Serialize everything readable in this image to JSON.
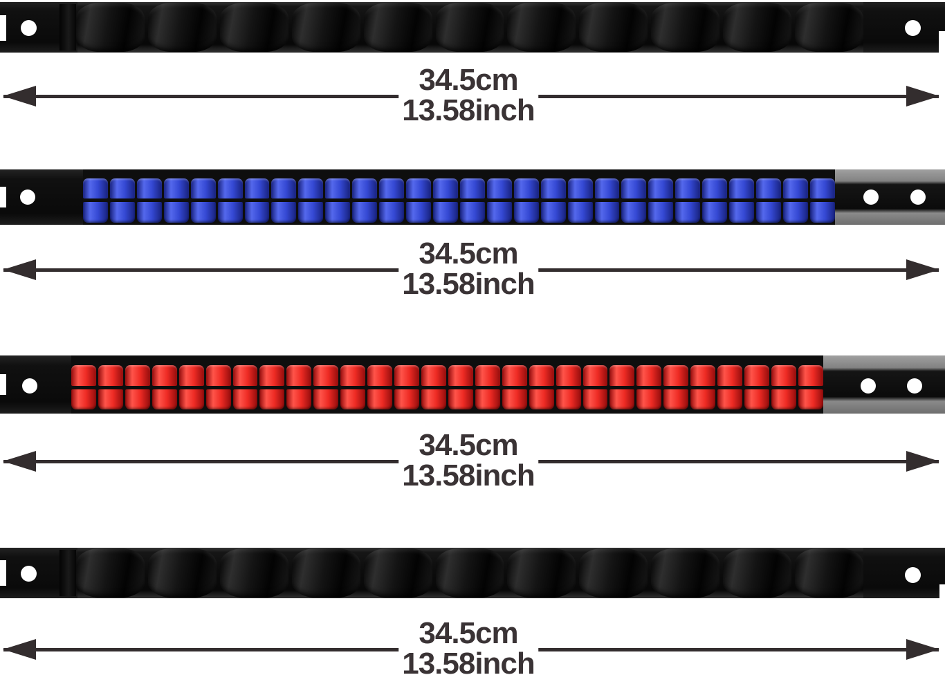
{
  "page": {
    "background": "#ffffff"
  },
  "dimensions": {
    "text_color": "#3a3335",
    "arrow_color": "#332d2e",
    "items": [
      {
        "cm": "34.5cm",
        "inch": "13.58inch"
      },
      {
        "cm": "34.5cm",
        "inch": "13.58inch"
      },
      {
        "cm": "34.5cm",
        "inch": "13.58inch"
      },
      {
        "cm": "34.5cm",
        "inch": "13.58inch"
      }
    ]
  },
  "rails": [
    {
      "id": "black-rail-top",
      "style": "large-clips",
      "rail_color": "#0c0c0c",
      "clip_color": "#141414",
      "clip_color_light": "#2e2e2e",
      "clip_color_dark": "#030303",
      "clip_count": 11,
      "mounting_holes": 2
    },
    {
      "id": "blue-rail",
      "style": "small-clips",
      "rail_color": "#0e0e0e",
      "clip_color": "#3549d4",
      "clip_color_light": "#5468ec",
      "clip_color_dark": "#18227e",
      "clips_per_row": 28,
      "rows": 2,
      "mounting_holes": 3
    },
    {
      "id": "red-rail",
      "style": "small-clips",
      "rail_color": "#0e0e0e",
      "clip_color": "#ee2b24",
      "clip_color_light": "#ff544a",
      "clip_color_dark": "#930c0c",
      "clips_per_row": 28,
      "rows": 2,
      "mounting_holes": 3
    },
    {
      "id": "black-rail-bottom",
      "style": "large-clips",
      "rail_color": "#0c0c0c",
      "clip_color": "#141414",
      "clip_color_light": "#2e2e2e",
      "clip_color_dark": "#030303",
      "clip_count": 11,
      "mounting_holes": 2
    }
  ]
}
